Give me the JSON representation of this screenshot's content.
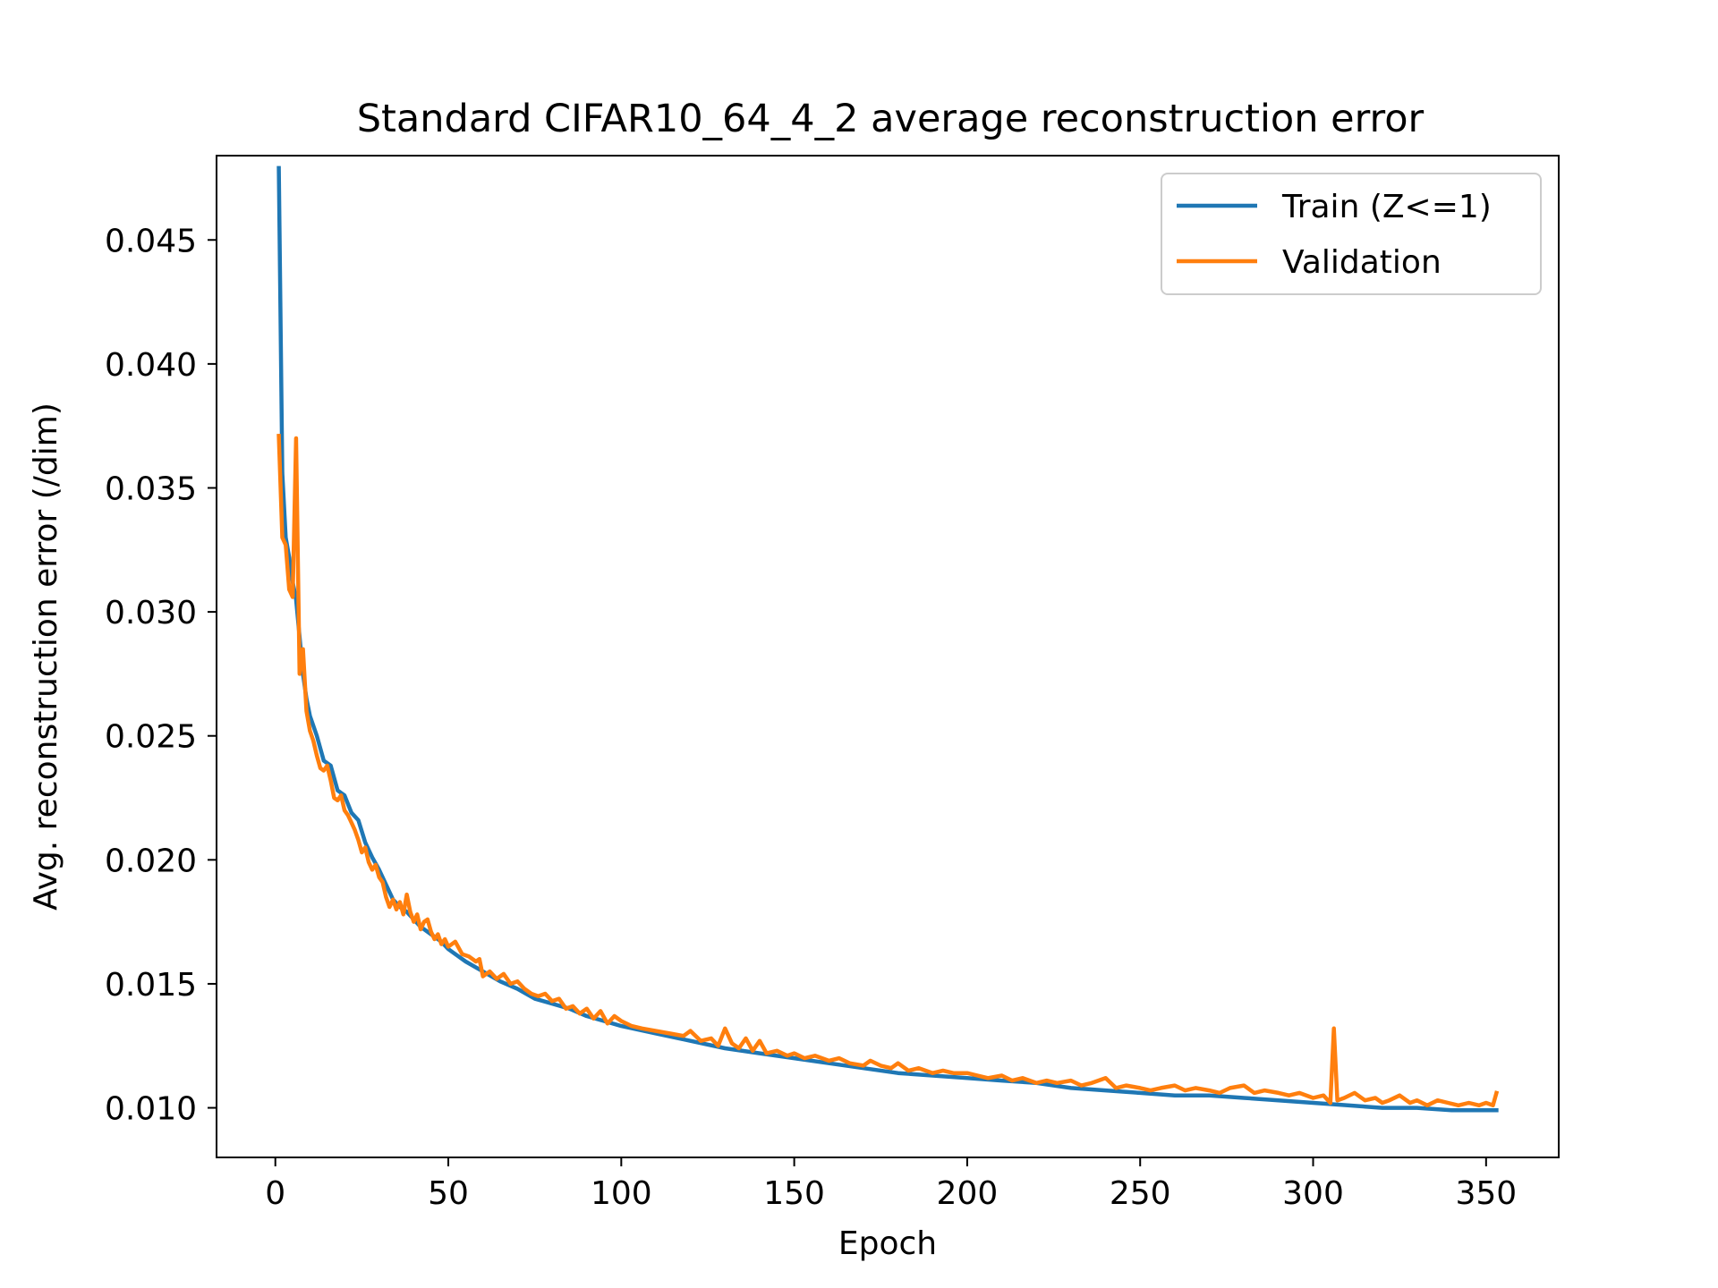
{
  "chart_data": {
    "type": "line",
    "title": "Standard CIFAR10_64_4_2 average reconstruction error",
    "xlabel": "Epoch",
    "ylabel": "Avg. reconstruction error (/dim)",
    "xlim": [
      -17,
      371
    ],
    "ylim": [
      0.008,
      0.0484
    ],
    "xticks": [
      0,
      50,
      100,
      150,
      200,
      250,
      300,
      350
    ],
    "yticks": [
      0.01,
      0.015,
      0.02,
      0.025,
      0.03,
      0.035,
      0.04,
      0.045
    ],
    "ytick_labels": [
      "0.010",
      "0.015",
      "0.020",
      "0.025",
      "0.030",
      "0.035",
      "0.040",
      "0.045"
    ],
    "xtick_labels": [
      "0",
      "50",
      "100",
      "150",
      "200",
      "250",
      "300",
      "350"
    ],
    "grid": false,
    "legend_position": "top-right",
    "series": [
      {
        "name": "Train (Z<=1)",
        "color": "#1f77b4",
        "points": [
          [
            1,
            0.0479
          ],
          [
            2,
            0.0356
          ],
          [
            3,
            0.033
          ],
          [
            4,
            0.0322
          ],
          [
            5,
            0.0312
          ],
          [
            6,
            0.0305
          ],
          [
            7,
            0.029
          ],
          [
            8,
            0.0275
          ],
          [
            9,
            0.0265
          ],
          [
            10,
            0.0258
          ],
          [
            12,
            0.025
          ],
          [
            14,
            0.024
          ],
          [
            16,
            0.0238
          ],
          [
            18,
            0.0228
          ],
          [
            20,
            0.0226
          ],
          [
            22,
            0.0219
          ],
          [
            24,
            0.0216
          ],
          [
            26,
            0.0207
          ],
          [
            28,
            0.0201
          ],
          [
            30,
            0.0196
          ],
          [
            32,
            0.019
          ],
          [
            34,
            0.0184
          ],
          [
            36,
            0.0181
          ],
          [
            38,
            0.0179
          ],
          [
            40,
            0.0176
          ],
          [
            42,
            0.0173
          ],
          [
            45,
            0.017
          ],
          [
            48,
            0.0167
          ],
          [
            50,
            0.0164
          ],
          [
            55,
            0.0159
          ],
          [
            60,
            0.0155
          ],
          [
            65,
            0.0151
          ],
          [
            70,
            0.0148
          ],
          [
            75,
            0.0144
          ],
          [
            80,
            0.0142
          ],
          [
            85,
            0.014
          ],
          [
            90,
            0.0137
          ],
          [
            95,
            0.0135
          ],
          [
            100,
            0.0133
          ],
          [
            110,
            0.013
          ],
          [
            120,
            0.0127
          ],
          [
            130,
            0.0124
          ],
          [
            140,
            0.0122
          ],
          [
            150,
            0.012
          ],
          [
            160,
            0.0118
          ],
          [
            170,
            0.0116
          ],
          [
            180,
            0.0114
          ],
          [
            190,
            0.0113
          ],
          [
            200,
            0.0112
          ],
          [
            210,
            0.0111
          ],
          [
            220,
            0.011
          ],
          [
            230,
            0.0108
          ],
          [
            240,
            0.0107
          ],
          [
            250,
            0.0106
          ],
          [
            260,
            0.0105
          ],
          [
            270,
            0.0105
          ],
          [
            280,
            0.0104
          ],
          [
            290,
            0.0103
          ],
          [
            300,
            0.0102
          ],
          [
            310,
            0.0101
          ],
          [
            320,
            0.01
          ],
          [
            330,
            0.01
          ],
          [
            340,
            0.0099
          ],
          [
            353,
            0.0099
          ]
        ]
      },
      {
        "name": "Validation",
        "color": "#ff7f0e",
        "points": [
          [
            1,
            0.0371
          ],
          [
            2,
            0.033
          ],
          [
            3,
            0.0327
          ],
          [
            4,
            0.0309
          ],
          [
            5,
            0.0306
          ],
          [
            6,
            0.037
          ],
          [
            7,
            0.0275
          ],
          [
            8,
            0.0285
          ],
          [
            9,
            0.026
          ],
          [
            10,
            0.0252
          ],
          [
            11,
            0.0248
          ],
          [
            12,
            0.0242
          ],
          [
            13,
            0.0237
          ],
          [
            14,
            0.0236
          ],
          [
            15,
            0.0238
          ],
          [
            16,
            0.0232
          ],
          [
            17,
            0.0225
          ],
          [
            18,
            0.0224
          ],
          [
            19,
            0.0226
          ],
          [
            20,
            0.022
          ],
          [
            21,
            0.0218
          ],
          [
            22,
            0.0215
          ],
          [
            23,
            0.0212
          ],
          [
            24,
            0.0208
          ],
          [
            25,
            0.0203
          ],
          [
            26,
            0.0205
          ],
          [
            27,
            0.0199
          ],
          [
            28,
            0.0196
          ],
          [
            29,
            0.0198
          ],
          [
            30,
            0.0193
          ],
          [
            31,
            0.0191
          ],
          [
            32,
            0.0185
          ],
          [
            33,
            0.0181
          ],
          [
            34,
            0.0184
          ],
          [
            35,
            0.018
          ],
          [
            36,
            0.0183
          ],
          [
            37,
            0.0178
          ],
          [
            38,
            0.0186
          ],
          [
            39,
            0.0179
          ],
          [
            40,
            0.0175
          ],
          [
            41,
            0.0178
          ],
          [
            42,
            0.0172
          ],
          [
            43,
            0.0175
          ],
          [
            44,
            0.0176
          ],
          [
            45,
            0.0171
          ],
          [
            46,
            0.0168
          ],
          [
            47,
            0.017
          ],
          [
            48,
            0.0166
          ],
          [
            49,
            0.0168
          ],
          [
            50,
            0.0165
          ],
          [
            52,
            0.0167
          ],
          [
            54,
            0.0162
          ],
          [
            56,
            0.0161
          ],
          [
            58,
            0.0159
          ],
          [
            59,
            0.016
          ],
          [
            60,
            0.0153
          ],
          [
            62,
            0.0155
          ],
          [
            64,
            0.0152
          ],
          [
            66,
            0.0154
          ],
          [
            68,
            0.015
          ],
          [
            70,
            0.0151
          ],
          [
            72,
            0.0148
          ],
          [
            74,
            0.0146
          ],
          [
            76,
            0.0145
          ],
          [
            78,
            0.0146
          ],
          [
            80,
            0.0143
          ],
          [
            82,
            0.0144
          ],
          [
            84,
            0.014
          ],
          [
            86,
            0.0141
          ],
          [
            88,
            0.0138
          ],
          [
            90,
            0.014
          ],
          [
            92,
            0.0136
          ],
          [
            94,
            0.0139
          ],
          [
            96,
            0.0134
          ],
          [
            98,
            0.0137
          ],
          [
            100,
            0.0135
          ],
          [
            103,
            0.0133
          ],
          [
            106,
            0.0132
          ],
          [
            110,
            0.0131
          ],
          [
            114,
            0.013
          ],
          [
            118,
            0.0129
          ],
          [
            120,
            0.0131
          ],
          [
            123,
            0.0127
          ],
          [
            126,
            0.0128
          ],
          [
            128,
            0.0125
          ],
          [
            130,
            0.0132
          ],
          [
            132,
            0.0126
          ],
          [
            134,
            0.0124
          ],
          [
            136,
            0.0128
          ],
          [
            138,
            0.0123
          ],
          [
            140,
            0.0127
          ],
          [
            142,
            0.0122
          ],
          [
            145,
            0.0123
          ],
          [
            148,
            0.0121
          ],
          [
            150,
            0.0122
          ],
          [
            153,
            0.012
          ],
          [
            156,
            0.0121
          ],
          [
            160,
            0.0119
          ],
          [
            163,
            0.012
          ],
          [
            166,
            0.0118
          ],
          [
            170,
            0.0117
          ],
          [
            172,
            0.0119
          ],
          [
            175,
            0.0117
          ],
          [
            178,
            0.0116
          ],
          [
            180,
            0.0118
          ],
          [
            183,
            0.0115
          ],
          [
            186,
            0.0116
          ],
          [
            190,
            0.0114
          ],
          [
            193,
            0.0115
          ],
          [
            196,
            0.0114
          ],
          [
            200,
            0.0114
          ],
          [
            203,
            0.0113
          ],
          [
            206,
            0.0112
          ],
          [
            210,
            0.0113
          ],
          [
            213,
            0.0111
          ],
          [
            216,
            0.0112
          ],
          [
            220,
            0.011
          ],
          [
            223,
            0.0111
          ],
          [
            226,
            0.011
          ],
          [
            230,
            0.0111
          ],
          [
            233,
            0.0109
          ],
          [
            236,
            0.011
          ],
          [
            240,
            0.0112
          ],
          [
            243,
            0.0108
          ],
          [
            246,
            0.0109
          ],
          [
            250,
            0.0108
          ],
          [
            253,
            0.0107
          ],
          [
            256,
            0.0108
          ],
          [
            260,
            0.0109
          ],
          [
            263,
            0.0107
          ],
          [
            266,
            0.0108
          ],
          [
            270,
            0.0107
          ],
          [
            273,
            0.0106
          ],
          [
            276,
            0.0108
          ],
          [
            280,
            0.0109
          ],
          [
            283,
            0.0106
          ],
          [
            286,
            0.0107
          ],
          [
            290,
            0.0106
          ],
          [
            293,
            0.0105
          ],
          [
            296,
            0.0106
          ],
          [
            300,
            0.0104
          ],
          [
            303,
            0.0105
          ],
          [
            305,
            0.0102
          ],
          [
            306,
            0.0132
          ],
          [
            307,
            0.0103
          ],
          [
            309,
            0.0104
          ],
          [
            312,
            0.0106
          ],
          [
            315,
            0.0103
          ],
          [
            318,
            0.0104
          ],
          [
            320,
            0.0102
          ],
          [
            322,
            0.0103
          ],
          [
            325,
            0.0105
          ],
          [
            328,
            0.0102
          ],
          [
            330,
            0.0103
          ],
          [
            333,
            0.0101
          ],
          [
            336,
            0.0103
          ],
          [
            339,
            0.0102
          ],
          [
            342,
            0.0101
          ],
          [
            345,
            0.0102
          ],
          [
            348,
            0.0101
          ],
          [
            350,
            0.0102
          ],
          [
            352,
            0.0101
          ],
          [
            353,
            0.0106
          ]
        ]
      }
    ]
  }
}
